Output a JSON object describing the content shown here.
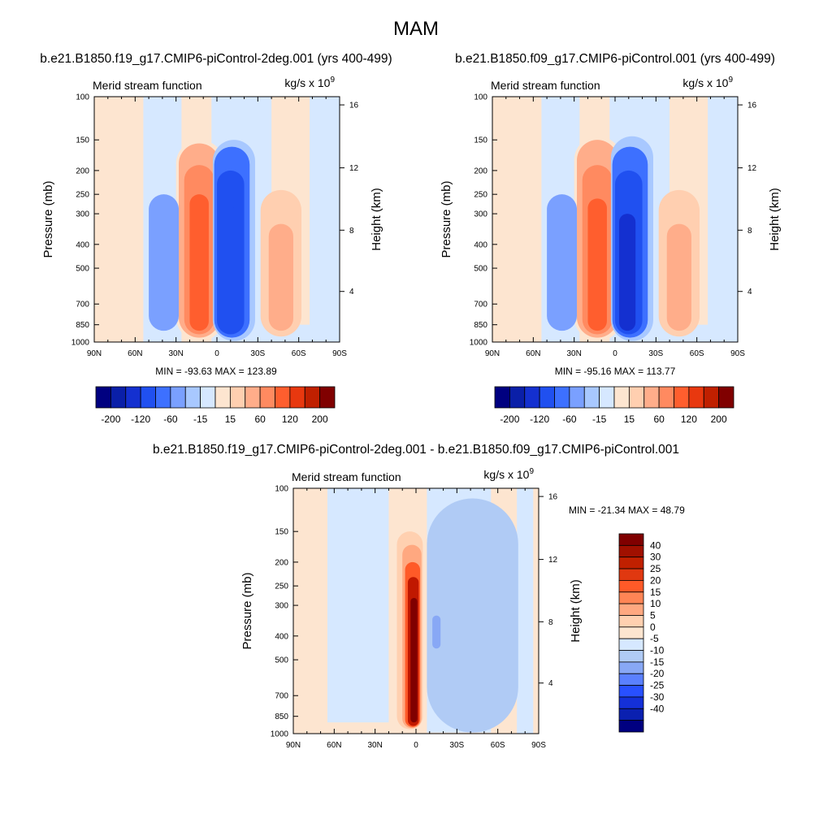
{
  "page": {
    "title": "MAM"
  },
  "chart_data": [
    {
      "type": "heatmap",
      "title": "b.e21.B1850.f19_g17.CMIP6-piControl-2deg.001 (yrs 400-499)",
      "left_label": "Merid stream function",
      "units": "kg/s x 10",
      "units_exp": "9",
      "ylabel": "Pressure (mb)",
      "y2label": "Height (km)",
      "xticks": [
        "90N",
        "60N",
        "30N",
        "0",
        "30S",
        "60S",
        "90S"
      ],
      "xlim": [
        90,
        -90
      ],
      "yticks": [
        100,
        150,
        200,
        250,
        300,
        400,
        500,
        700,
        850,
        1000
      ],
      "ylim": [
        100,
        1000
      ],
      "yscale": "log",
      "y2ticks": [
        16,
        12,
        8,
        4
      ],
      "stats": "MIN = -93.63  MAX = 123.89",
      "min": -93.63,
      "max": 123.89,
      "colorbar_labels": [
        "-200",
        "-120",
        "-60",
        "-15",
        "15",
        "60",
        "120",
        "200"
      ],
      "features": [
        {
          "value": 10,
          "lat": [
            30,
            -5
          ],
          "p": [
            150,
            990
          ]
        },
        {
          "value": 45,
          "lat": [
            28,
            -2
          ],
          "p": [
            155,
            960
          ]
        },
        {
          "value": 85,
          "lat": [
            24,
            2
          ],
          "p": [
            190,
            930
          ]
        },
        {
          "value": 115,
          "lat": [
            20,
            6
          ],
          "p": [
            250,
            900
          ]
        },
        {
          "value": -10,
          "lat": [
            3,
            -28
          ],
          "p": [
            150,
            990
          ]
        },
        {
          "value": -40,
          "lat": [
            2,
            -24
          ],
          "p": [
            160,
            960
          ]
        },
        {
          "value": -70,
          "lat": [
            0,
            -20
          ],
          "p": [
            200,
            930
          ]
        },
        {
          "value": -90,
          "lat": [
            -3,
            -15
          ],
          "p": [
            280,
            900
          ]
        },
        {
          "value": 20,
          "lat": [
            -32,
            -62
          ],
          "p": [
            240,
            950
          ]
        },
        {
          "value": 40,
          "lat": [
            -38,
            -56
          ],
          "p": [
            330,
            900
          ]
        },
        {
          "value": -20,
          "lat": [
            50,
            28
          ],
          "p": [
            250,
            900
          ]
        }
      ]
    },
    {
      "type": "heatmap",
      "title": "b.e21.B1850.f09_g17.CMIP6-piControl.001 (yrs 400-499)",
      "left_label": "Merid stream function",
      "units": "kg/s x 10",
      "units_exp": "9",
      "ylabel": "Pressure (mb)",
      "y2label": "Height (km)",
      "xticks": [
        "90N",
        "60N",
        "30N",
        "0",
        "30S",
        "60S",
        "90S"
      ],
      "xlim": [
        90,
        -90
      ],
      "yticks": [
        100,
        150,
        200,
        250,
        300,
        400,
        500,
        700,
        850,
        1000
      ],
      "ylim": [
        100,
        1000
      ],
      "yscale": "log",
      "y2ticks": [
        16,
        12,
        8,
        4
      ],
      "stats": "MIN = -95.16  MAX = 113.77",
      "min": -95.16,
      "max": 113.77,
      "colorbar_labels": [
        "-200",
        "-120",
        "-60",
        "-15",
        "15",
        "60",
        "120",
        "200"
      ],
      "features": [
        {
          "value": 10,
          "lat": [
            30,
            -5
          ],
          "p": [
            145,
            990
          ]
        },
        {
          "value": 45,
          "lat": [
            28,
            -2
          ],
          "p": [
            150,
            960
          ]
        },
        {
          "value": 85,
          "lat": [
            24,
            2
          ],
          "p": [
            190,
            930
          ]
        },
        {
          "value": 110,
          "lat": [
            20,
            6
          ],
          "p": [
            260,
            900
          ]
        },
        {
          "value": -10,
          "lat": [
            3,
            -28
          ],
          "p": [
            145,
            990
          ]
        },
        {
          "value": -40,
          "lat": [
            2,
            -24
          ],
          "p": [
            160,
            960
          ]
        },
        {
          "value": -70,
          "lat": [
            0,
            -20
          ],
          "p": [
            200,
            930
          ]
        },
        {
          "value": -92,
          "lat": [
            -3,
            -15
          ],
          "p": [
            300,
            900
          ]
        },
        {
          "value": 20,
          "lat": [
            -32,
            -62
          ],
          "p": [
            240,
            950
          ]
        },
        {
          "value": 40,
          "lat": [
            -38,
            -56
          ],
          "p": [
            330,
            900
          ]
        },
        {
          "value": -20,
          "lat": [
            50,
            28
          ],
          "p": [
            250,
            900
          ]
        }
      ]
    },
    {
      "type": "heatmap",
      "title": "b.e21.B1850.f19_g17.CMIP6-piControl-2deg.001 - b.e21.B1850.f09_g17.CMIP6-piControl.001",
      "left_label": "Merid stream function",
      "units": "kg/s x 10",
      "units_exp": "9",
      "ylabel": "Pressure (mb)",
      "y2label": "Height (km)",
      "xticks": [
        "90N",
        "60N",
        "30N",
        "0",
        "30S",
        "60S",
        "90S"
      ],
      "xlim": [
        90,
        -90
      ],
      "yticks": [
        100,
        150,
        200,
        250,
        300,
        400,
        500,
        700,
        850,
        1000
      ],
      "ylim": [
        100,
        1000
      ],
      "yscale": "log",
      "y2ticks": [
        16,
        12,
        8,
        4
      ],
      "stats": "MIN = -21.34  MAX =  48.79",
      "min": -21.34,
      "max": 48.79,
      "colorbar_labels": [
        "40",
        "30",
        "25",
        "20",
        "15",
        "10",
        "5",
        "0",
        "-5",
        "-10",
        "-15",
        "-20",
        "-25",
        "-30",
        "-40"
      ],
      "features": [
        {
          "value": 3,
          "lat": [
            20,
            -8
          ],
          "p": [
            125,
            980
          ]
        },
        {
          "value": 7,
          "lat": [
            14,
            -5
          ],
          "p": [
            150,
            960
          ]
        },
        {
          "value": 12,
          "lat": [
            10,
            -4
          ],
          "p": [
            170,
            950
          ]
        },
        {
          "value": 22,
          "lat": [
            8,
            -3
          ],
          "p": [
            200,
            940
          ]
        },
        {
          "value": 32,
          "lat": [
            6,
            -2
          ],
          "p": [
            230,
            930
          ]
        },
        {
          "value": 45,
          "lat": [
            4,
            -1
          ],
          "p": [
            280,
            900
          ]
        },
        {
          "value": -3,
          "lat": [
            -8,
            -75
          ],
          "p": [
            110,
            990
          ]
        },
        {
          "value": -7,
          "lat": [
            -12,
            -18
          ],
          "p": [
            330,
            450
          ]
        }
      ]
    }
  ]
}
